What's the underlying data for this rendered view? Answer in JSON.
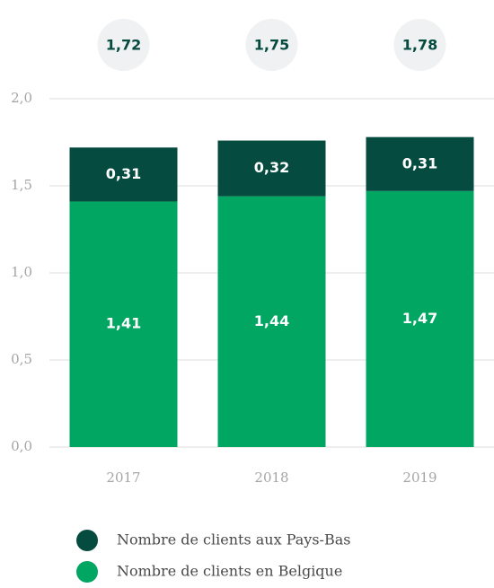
{
  "chart_data": {
    "type": "stacked_bar",
    "categories": [
      "2017",
      "2018",
      "2019"
    ],
    "series": [
      {
        "name": "Nombre de clients en Belgique",
        "color": "#00a661",
        "values": [
          1.41,
          1.44,
          1.47
        ],
        "value_labels": [
          "1,41",
          "1,44",
          "1,47"
        ]
      },
      {
        "name": "Nombre de clients aux Pays-Bas",
        "color": "#064b3f",
        "values": [
          0.31,
          0.32,
          0.31
        ],
        "value_labels": [
          "0,31",
          "0,32",
          "0,31"
        ]
      }
    ],
    "totals": {
      "values": [
        1.72,
        1.75,
        1.78
      ],
      "value_labels": [
        "1,72",
        "1,75",
        "1,78"
      ]
    },
    "ylim": [
      0,
      2
    ],
    "yticks": [
      {
        "value": 0,
        "label": "0,0"
      },
      {
        "value": 0.5,
        "label": "0,5"
      },
      {
        "value": 1,
        "label": "1,0"
      },
      {
        "value": 1.5,
        "label": "1,5"
      },
      {
        "value": 2,
        "label": "2,0"
      }
    ],
    "grid": true
  }
}
